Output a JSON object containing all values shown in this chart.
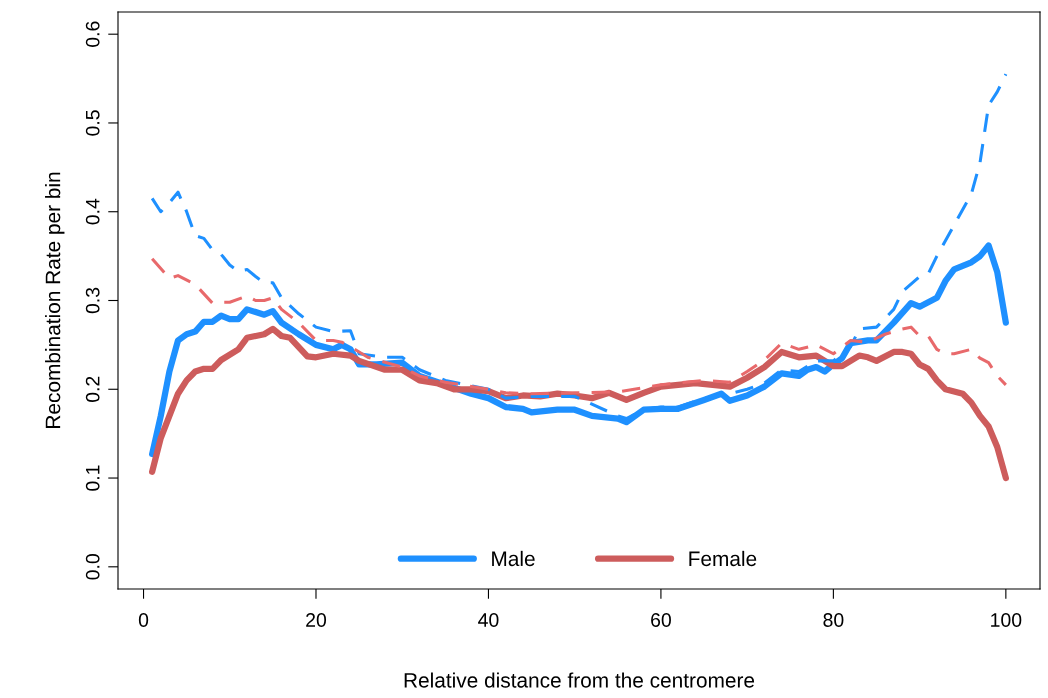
{
  "chart_data": {
    "type": "line",
    "xlabel": "Relative distance from the centromere",
    "ylabel": "Recombination Rate per bin",
    "xlim": [
      -2.96,
      103.96
    ],
    "xticks": [
      0,
      20,
      40,
      60,
      80,
      100
    ],
    "ylim": [
      -0.025,
      0.625
    ],
    "yticks": [
      {
        "value": 0,
        "label": "0.0"
      },
      0.1,
      0.2,
      0.3,
      0.4,
      0.5,
      0.6
    ],
    "grid": false,
    "legend": "bottom",
    "series": [
      {
        "name": "Male",
        "color": "#1e90ff",
        "line_style": "solid",
        "x": [
          1,
          2,
          3,
          4,
          5,
          6,
          7,
          8,
          9,
          10,
          11,
          12,
          13,
          14,
          15,
          16,
          18,
          20,
          22,
          23,
          24,
          25,
          27,
          30,
          32,
          35,
          38,
          40,
          42,
          44,
          45,
          48,
          50,
          52,
          55,
          56,
          58,
          60,
          62,
          65,
          67,
          68,
          70,
          72,
          74,
          76,
          77,
          78,
          79,
          80,
          81,
          82,
          84,
          85,
          87,
          89,
          90,
          92,
          93,
          94,
          96,
          97,
          98,
          99,
          100
        ],
        "values": [
          0.127,
          0.17,
          0.22,
          0.255,
          0.262,
          0.265,
          0.276,
          0.276,
          0.283,
          0.279,
          0.279,
          0.29,
          0.287,
          0.284,
          0.288,
          0.275,
          0.262,
          0.25,
          0.245,
          0.25,
          0.245,
          0.228,
          0.228,
          0.23,
          0.215,
          0.205,
          0.195,
          0.19,
          0.18,
          0.178,
          0.174,
          0.177,
          0.177,
          0.17,
          0.167,
          0.163,
          0.177,
          0.178,
          0.178,
          0.188,
          0.195,
          0.187,
          0.193,
          0.203,
          0.218,
          0.215,
          0.222,
          0.225,
          0.22,
          0.228,
          0.235,
          0.252,
          0.255,
          0.255,
          0.275,
          0.297,
          0.293,
          0.303,
          0.322,
          0.335,
          0.343,
          0.35,
          0.362,
          0.332,
          0.275
        ]
      },
      {
        "name": "Female",
        "color": "#cd5c5c",
        "line_style": "solid",
        "x": [
          1,
          2,
          4,
          5,
          6,
          7,
          8,
          9,
          11,
          12,
          14,
          15,
          16,
          17,
          19,
          20,
          22,
          24,
          25,
          28,
          30,
          32,
          34,
          36,
          38,
          40,
          42,
          44,
          46,
          48,
          50,
          52,
          54,
          56,
          58,
          60,
          62,
          64,
          66,
          68,
          70,
          72,
          74,
          76,
          78,
          80,
          81,
          83,
          84,
          85,
          87,
          88,
          89,
          90,
          91,
          92,
          93,
          95,
          96,
          97,
          98,
          99,
          100
        ],
        "values": [
          0.107,
          0.145,
          0.195,
          0.21,
          0.22,
          0.223,
          0.223,
          0.233,
          0.245,
          0.258,
          0.262,
          0.268,
          0.26,
          0.258,
          0.237,
          0.236,
          0.24,
          0.238,
          0.232,
          0.222,
          0.222,
          0.21,
          0.207,
          0.2,
          0.2,
          0.198,
          0.19,
          0.193,
          0.192,
          0.195,
          0.193,
          0.19,
          0.196,
          0.188,
          0.196,
          0.203,
          0.205,
          0.207,
          0.205,
          0.203,
          0.213,
          0.225,
          0.242,
          0.236,
          0.238,
          0.226,
          0.226,
          0.238,
          0.236,
          0.232,
          0.242,
          0.242,
          0.24,
          0.228,
          0.223,
          0.21,
          0.2,
          0.195,
          0.185,
          0.17,
          0.158,
          0.135,
          0.1
        ]
      },
      {
        "color": "#1e90ff",
        "line_style": "dashed",
        "x": [
          1,
          2,
          3,
          4,
          5,
          6,
          7,
          8,
          9,
          10,
          11,
          12,
          13,
          14,
          15,
          16,
          18,
          20,
          22,
          24,
          25,
          28,
          30,
          32,
          35,
          40,
          42,
          45,
          50,
          55,
          56,
          58,
          60,
          62,
          65,
          68,
          70,
          72,
          74,
          76,
          78,
          80,
          82,
          83,
          85,
          87,
          88,
          90,
          91,
          92,
          94,
          96,
          97,
          98,
          99,
          100
        ],
        "values": [
          0.415,
          0.4,
          0.41,
          0.422,
          0.4,
          0.373,
          0.37,
          0.357,
          0.352,
          0.34,
          0.333,
          0.335,
          0.327,
          0.32,
          0.32,
          0.303,
          0.285,
          0.27,
          0.265,
          0.266,
          0.24,
          0.236,
          0.236,
          0.222,
          0.21,
          0.2,
          0.19,
          0.192,
          0.192,
          0.17,
          0.167,
          0.177,
          0.18,
          0.18,
          0.19,
          0.195,
          0.2,
          0.207,
          0.222,
          0.22,
          0.232,
          0.232,
          0.248,
          0.268,
          0.27,
          0.29,
          0.31,
          0.327,
          0.33,
          0.35,
          0.385,
          0.42,
          0.455,
          0.52,
          0.535,
          0.555
        ]
      },
      {
        "color": "#e8696b",
        "line_style": "dashed",
        "x": [
          1,
          3,
          4,
          6,
          8,
          9,
          10,
          12,
          13,
          14,
          15,
          16,
          18,
          20,
          22,
          23,
          24,
          26,
          30,
          32,
          35,
          40,
          42,
          45,
          50,
          55,
          60,
          65,
          68,
          70,
          72,
          74,
          76,
          78,
          80,
          82,
          84,
          86,
          88,
          89,
          90,
          91,
          92,
          93,
          94,
          96,
          97,
          98,
          99,
          100
        ],
        "values": [
          0.347,
          0.325,
          0.328,
          0.318,
          0.297,
          0.298,
          0.298,
          0.305,
          0.3,
          0.3,
          0.303,
          0.29,
          0.275,
          0.255,
          0.255,
          0.253,
          0.248,
          0.236,
          0.225,
          0.215,
          0.208,
          0.2,
          0.196,
          0.195,
          0.196,
          0.197,
          0.205,
          0.21,
          0.208,
          0.22,
          0.233,
          0.252,
          0.245,
          0.25,
          0.24,
          0.255,
          0.253,
          0.262,
          0.268,
          0.27,
          0.26,
          0.26,
          0.245,
          0.24,
          0.24,
          0.245,
          0.235,
          0.23,
          0.215,
          0.205
        ]
      }
    ]
  }
}
